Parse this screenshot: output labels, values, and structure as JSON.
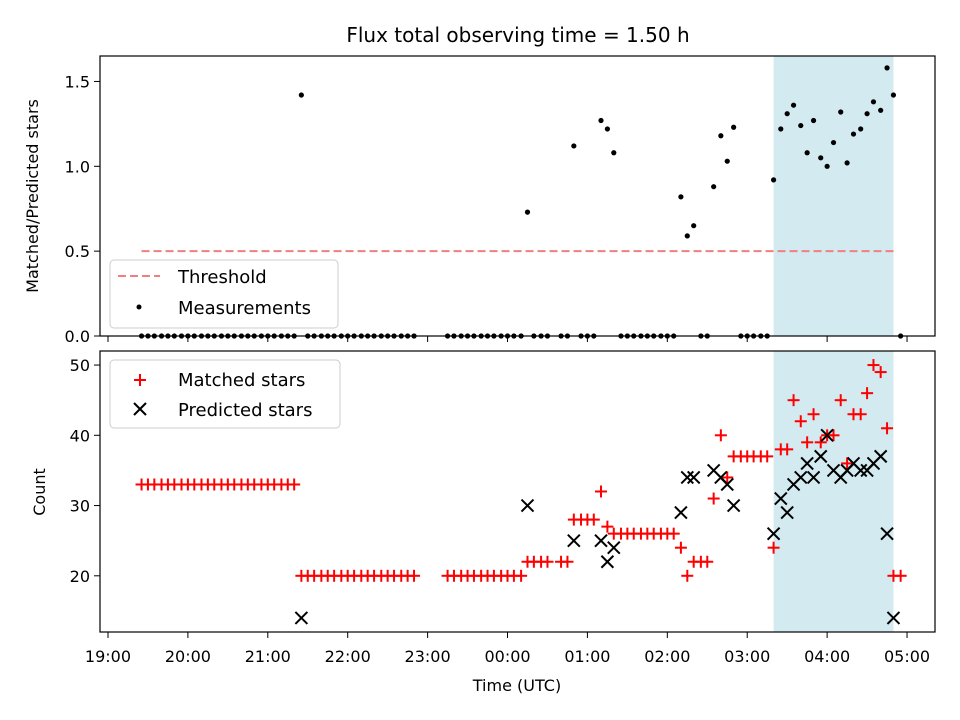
{
  "chart_data": [
    {
      "type": "scatter",
      "title": "Flux total observing time = 1.50 h",
      "xlabel": "",
      "ylabel": "Matched/Predicted stars",
      "xlim": [
        -0.1,
        10.35
      ],
      "ylim": [
        0,
        1.65
      ],
      "yticks": [
        0.0,
        0.5,
        1.0,
        1.5
      ],
      "ytick_labels": [
        "0.0",
        "0.5",
        "1.0",
        "1.5"
      ],
      "xticks": [
        0,
        1,
        2,
        3,
        4,
        5,
        6,
        7,
        8,
        9,
        10
      ],
      "xtick_labels": [],
      "grid": false,
      "legend_position": "lower-left",
      "shaded_span": [
        8.33,
        9.83
      ],
      "shaded_color": "#d3eaf1",
      "threshold": {
        "name": "Threshold",
        "y": 0.5,
        "x_range": [
          0.42,
          9.87
        ],
        "color": "#f08080",
        "style": "dashed"
      },
      "series": [
        {
          "name": "Measurements",
          "color": "#000000",
          "marker": "dot",
          "points": [
            [
              0.42,
              0
            ],
            [
              0.5,
              0
            ],
            [
              0.58,
              0
            ],
            [
              0.67,
              0
            ],
            [
              0.75,
              0
            ],
            [
              0.83,
              0
            ],
            [
              0.92,
              0
            ],
            [
              1.0,
              0
            ],
            [
              1.08,
              0
            ],
            [
              1.17,
              0
            ],
            [
              1.25,
              0
            ],
            [
              1.33,
              0
            ],
            [
              1.42,
              0
            ],
            [
              1.5,
              0
            ],
            [
              1.58,
              0
            ],
            [
              1.67,
              0
            ],
            [
              1.75,
              0
            ],
            [
              1.83,
              0
            ],
            [
              1.92,
              0
            ],
            [
              2.0,
              0
            ],
            [
              2.08,
              0
            ],
            [
              2.17,
              0
            ],
            [
              2.25,
              0
            ],
            [
              2.33,
              0
            ],
            [
              2.42,
              1.42
            ],
            [
              2.5,
              0
            ],
            [
              2.58,
              0
            ],
            [
              2.67,
              0
            ],
            [
              2.75,
              0
            ],
            [
              2.83,
              0
            ],
            [
              2.92,
              0
            ],
            [
              3.0,
              0
            ],
            [
              3.08,
              0
            ],
            [
              3.17,
              0
            ],
            [
              3.25,
              0
            ],
            [
              3.33,
              0
            ],
            [
              3.42,
              0
            ],
            [
              3.5,
              0
            ],
            [
              3.58,
              0
            ],
            [
              3.67,
              0
            ],
            [
              3.75,
              0
            ],
            [
              3.83,
              0
            ],
            [
              4.25,
              0
            ],
            [
              4.33,
              0
            ],
            [
              4.42,
              0
            ],
            [
              4.5,
              0
            ],
            [
              4.58,
              0
            ],
            [
              4.67,
              0
            ],
            [
              4.75,
              0
            ],
            [
              4.83,
              0
            ],
            [
              4.92,
              0
            ],
            [
              5.0,
              0
            ],
            [
              5.08,
              0
            ],
            [
              5.17,
              0
            ],
            [
              5.25,
              0.73
            ],
            [
              5.33,
              0
            ],
            [
              5.42,
              0
            ],
            [
              5.5,
              0
            ],
            [
              5.67,
              0
            ],
            [
              5.75,
              0
            ],
            [
              5.83,
              1.12
            ],
            [
              5.92,
              0
            ],
            [
              6.0,
              0
            ],
            [
              6.08,
              0
            ],
            [
              6.17,
              1.27
            ],
            [
              6.25,
              1.22
            ],
            [
              6.33,
              1.08
            ],
            [
              6.42,
              0
            ],
            [
              6.5,
              0
            ],
            [
              6.58,
              0
            ],
            [
              6.67,
              0
            ],
            [
              6.75,
              0
            ],
            [
              6.83,
              0
            ],
            [
              6.92,
              0
            ],
            [
              7.0,
              0
            ],
            [
              7.08,
              0
            ],
            [
              7.17,
              0.82
            ],
            [
              7.25,
              0.59
            ],
            [
              7.33,
              0.65
            ],
            [
              7.42,
              0
            ],
            [
              7.5,
              0
            ],
            [
              7.58,
              0.88
            ],
            [
              7.67,
              1.18
            ],
            [
              7.75,
              1.03
            ],
            [
              7.83,
              1.23
            ],
            [
              7.92,
              0
            ],
            [
              8.0,
              0
            ],
            [
              8.08,
              0
            ],
            [
              8.17,
              0
            ],
            [
              8.25,
              0
            ],
            [
              8.33,
              0.92
            ],
            [
              8.42,
              1.22
            ],
            [
              8.5,
              1.31
            ],
            [
              8.58,
              1.36
            ],
            [
              8.67,
              1.24
            ],
            [
              8.75,
              1.08
            ],
            [
              8.83,
              1.27
            ],
            [
              8.92,
              1.05
            ],
            [
              9.0,
              1.0
            ],
            [
              9.08,
              1.14
            ],
            [
              9.17,
              1.32
            ],
            [
              9.25,
              1.02
            ],
            [
              9.33,
              1.19
            ],
            [
              9.42,
              1.22
            ],
            [
              9.5,
              1.31
            ],
            [
              9.58,
              1.38
            ],
            [
              9.67,
              1.33
            ],
            [
              9.75,
              1.58
            ],
            [
              9.83,
              1.42
            ],
            [
              9.92,
              0
            ]
          ]
        }
      ]
    },
    {
      "type": "scatter",
      "title": "",
      "xlabel": "Time (UTC)",
      "ylabel": "Count",
      "xlim": [
        -0.1,
        10.35
      ],
      "ylim": [
        12,
        52
      ],
      "yticks": [
        20,
        30,
        40,
        50
      ],
      "ytick_labels": [
        "20",
        "30",
        "40",
        "50"
      ],
      "xticks": [
        0,
        1,
        2,
        3,
        4,
        5,
        6,
        7,
        8,
        9,
        10
      ],
      "xtick_labels": [
        "19:00",
        "20:00",
        "21:00",
        "22:00",
        "23:00",
        "00:00",
        "01:00",
        "02:00",
        "03:00",
        "04:00",
        "05:00"
      ],
      "grid": false,
      "legend_position": "upper-left",
      "shaded_span": [
        8.33,
        9.83
      ],
      "shaded_color": "#d3eaf1",
      "series": [
        {
          "name": "Matched stars",
          "color": "#ff0000",
          "marker": "plus",
          "points": [
            [
              0.42,
              33
            ],
            [
              0.5,
              33
            ],
            [
              0.58,
              33
            ],
            [
              0.67,
              33
            ],
            [
              0.75,
              33
            ],
            [
              0.83,
              33
            ],
            [
              0.92,
              33
            ],
            [
              1.0,
              33
            ],
            [
              1.08,
              33
            ],
            [
              1.17,
              33
            ],
            [
              1.25,
              33
            ],
            [
              1.33,
              33
            ],
            [
              1.42,
              33
            ],
            [
              1.5,
              33
            ],
            [
              1.58,
              33
            ],
            [
              1.67,
              33
            ],
            [
              1.75,
              33
            ],
            [
              1.83,
              33
            ],
            [
              1.92,
              33
            ],
            [
              2.0,
              33
            ],
            [
              2.08,
              33
            ],
            [
              2.17,
              33
            ],
            [
              2.25,
              33
            ],
            [
              2.33,
              33
            ],
            [
              2.42,
              20
            ],
            [
              2.5,
              20
            ],
            [
              2.58,
              20
            ],
            [
              2.67,
              20
            ],
            [
              2.75,
              20
            ],
            [
              2.83,
              20
            ],
            [
              2.92,
              20
            ],
            [
              3.0,
              20
            ],
            [
              3.08,
              20
            ],
            [
              3.17,
              20
            ],
            [
              3.25,
              20
            ],
            [
              3.33,
              20
            ],
            [
              3.42,
              20
            ],
            [
              3.5,
              20
            ],
            [
              3.58,
              20
            ],
            [
              3.67,
              20
            ],
            [
              3.75,
              20
            ],
            [
              3.83,
              20
            ],
            [
              4.25,
              20
            ],
            [
              4.33,
              20
            ],
            [
              4.42,
              20
            ],
            [
              4.5,
              20
            ],
            [
              4.58,
              20
            ],
            [
              4.67,
              20
            ],
            [
              4.75,
              20
            ],
            [
              4.83,
              20
            ],
            [
              4.92,
              20
            ],
            [
              5.0,
              20
            ],
            [
              5.08,
              20
            ],
            [
              5.17,
              20
            ],
            [
              5.25,
              22
            ],
            [
              5.33,
              22
            ],
            [
              5.42,
              22
            ],
            [
              5.5,
              22
            ],
            [
              5.67,
              22
            ],
            [
              5.75,
              22
            ],
            [
              5.83,
              28
            ],
            [
              5.92,
              28
            ],
            [
              6.0,
              28
            ],
            [
              6.08,
              28
            ],
            [
              6.17,
              32
            ],
            [
              6.25,
              27
            ],
            [
              6.33,
              26
            ],
            [
              6.42,
              26
            ],
            [
              6.5,
              26
            ],
            [
              6.58,
              26
            ],
            [
              6.67,
              26
            ],
            [
              6.75,
              26
            ],
            [
              6.83,
              26
            ],
            [
              6.92,
              26
            ],
            [
              7.0,
              26
            ],
            [
              7.08,
              26
            ],
            [
              7.17,
              24
            ],
            [
              7.25,
              20
            ],
            [
              7.33,
              22
            ],
            [
              7.42,
              22
            ],
            [
              7.5,
              22
            ],
            [
              7.58,
              31
            ],
            [
              7.67,
              40
            ],
            [
              7.75,
              34
            ],
            [
              7.83,
              37
            ],
            [
              7.92,
              37
            ],
            [
              8.0,
              37
            ],
            [
              8.08,
              37
            ],
            [
              8.17,
              37
            ],
            [
              8.25,
              37
            ],
            [
              8.33,
              24
            ],
            [
              8.42,
              38
            ],
            [
              8.5,
              38
            ],
            [
              8.58,
              45
            ],
            [
              8.67,
              42
            ],
            [
              8.75,
              39
            ],
            [
              8.83,
              43
            ],
            [
              8.92,
              39
            ],
            [
              9.0,
              40
            ],
            [
              9.08,
              40
            ],
            [
              9.17,
              45
            ],
            [
              9.25,
              36
            ],
            [
              9.33,
              43
            ],
            [
              9.42,
              43
            ],
            [
              9.5,
              46
            ],
            [
              9.58,
              50
            ],
            [
              9.67,
              49
            ],
            [
              9.75,
              41
            ],
            [
              9.83,
              20
            ],
            [
              9.92,
              20
            ]
          ]
        },
        {
          "name": "Predicted stars",
          "color": "#000000",
          "marker": "x",
          "points": [
            [
              2.42,
              14
            ],
            [
              5.25,
              30
            ],
            [
              5.83,
              25
            ],
            [
              6.17,
              25
            ],
            [
              6.25,
              22
            ],
            [
              6.33,
              24
            ],
            [
              7.17,
              29
            ],
            [
              7.25,
              34
            ],
            [
              7.33,
              34
            ],
            [
              7.58,
              35
            ],
            [
              7.67,
              34
            ],
            [
              7.75,
              33
            ],
            [
              7.83,
              30
            ],
            [
              8.33,
              26
            ],
            [
              8.42,
              31
            ],
            [
              8.5,
              29
            ],
            [
              8.58,
              33
            ],
            [
              8.67,
              34
            ],
            [
              8.75,
              36
            ],
            [
              8.83,
              34
            ],
            [
              8.92,
              37
            ],
            [
              9.0,
              40
            ],
            [
              9.08,
              35
            ],
            [
              9.17,
              34
            ],
            [
              9.25,
              35
            ],
            [
              9.33,
              36
            ],
            [
              9.42,
              35
            ],
            [
              9.5,
              35
            ],
            [
              9.58,
              36
            ],
            [
              9.67,
              37
            ],
            [
              9.75,
              26
            ],
            [
              9.83,
              14
            ]
          ]
        }
      ]
    }
  ]
}
